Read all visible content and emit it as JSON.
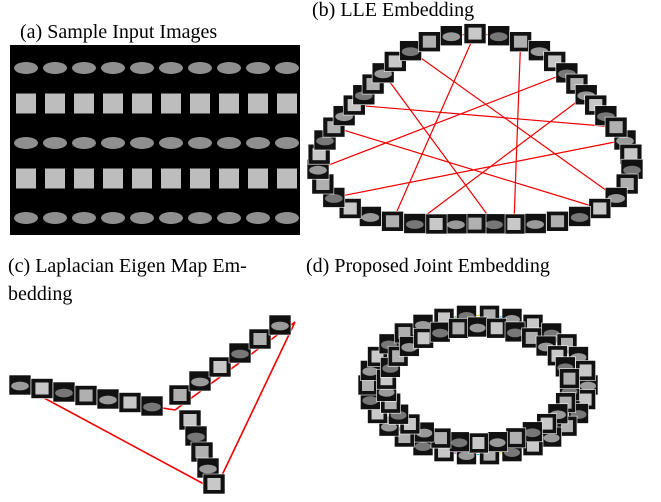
{
  "panels": [
    {
      "caption_lines": [
        "(a) Sample Input Images"
      ]
    },
    {
      "caption_lines": [
        "(b) LLE Embedding"
      ]
    },
    {
      "caption_lines": [
        "(c) Laplacian Eigen Map Em-",
        "bedding"
      ]
    },
    {
      "caption_lines": [
        "(d) Proposed Joint Embedding"
      ]
    }
  ]
}
